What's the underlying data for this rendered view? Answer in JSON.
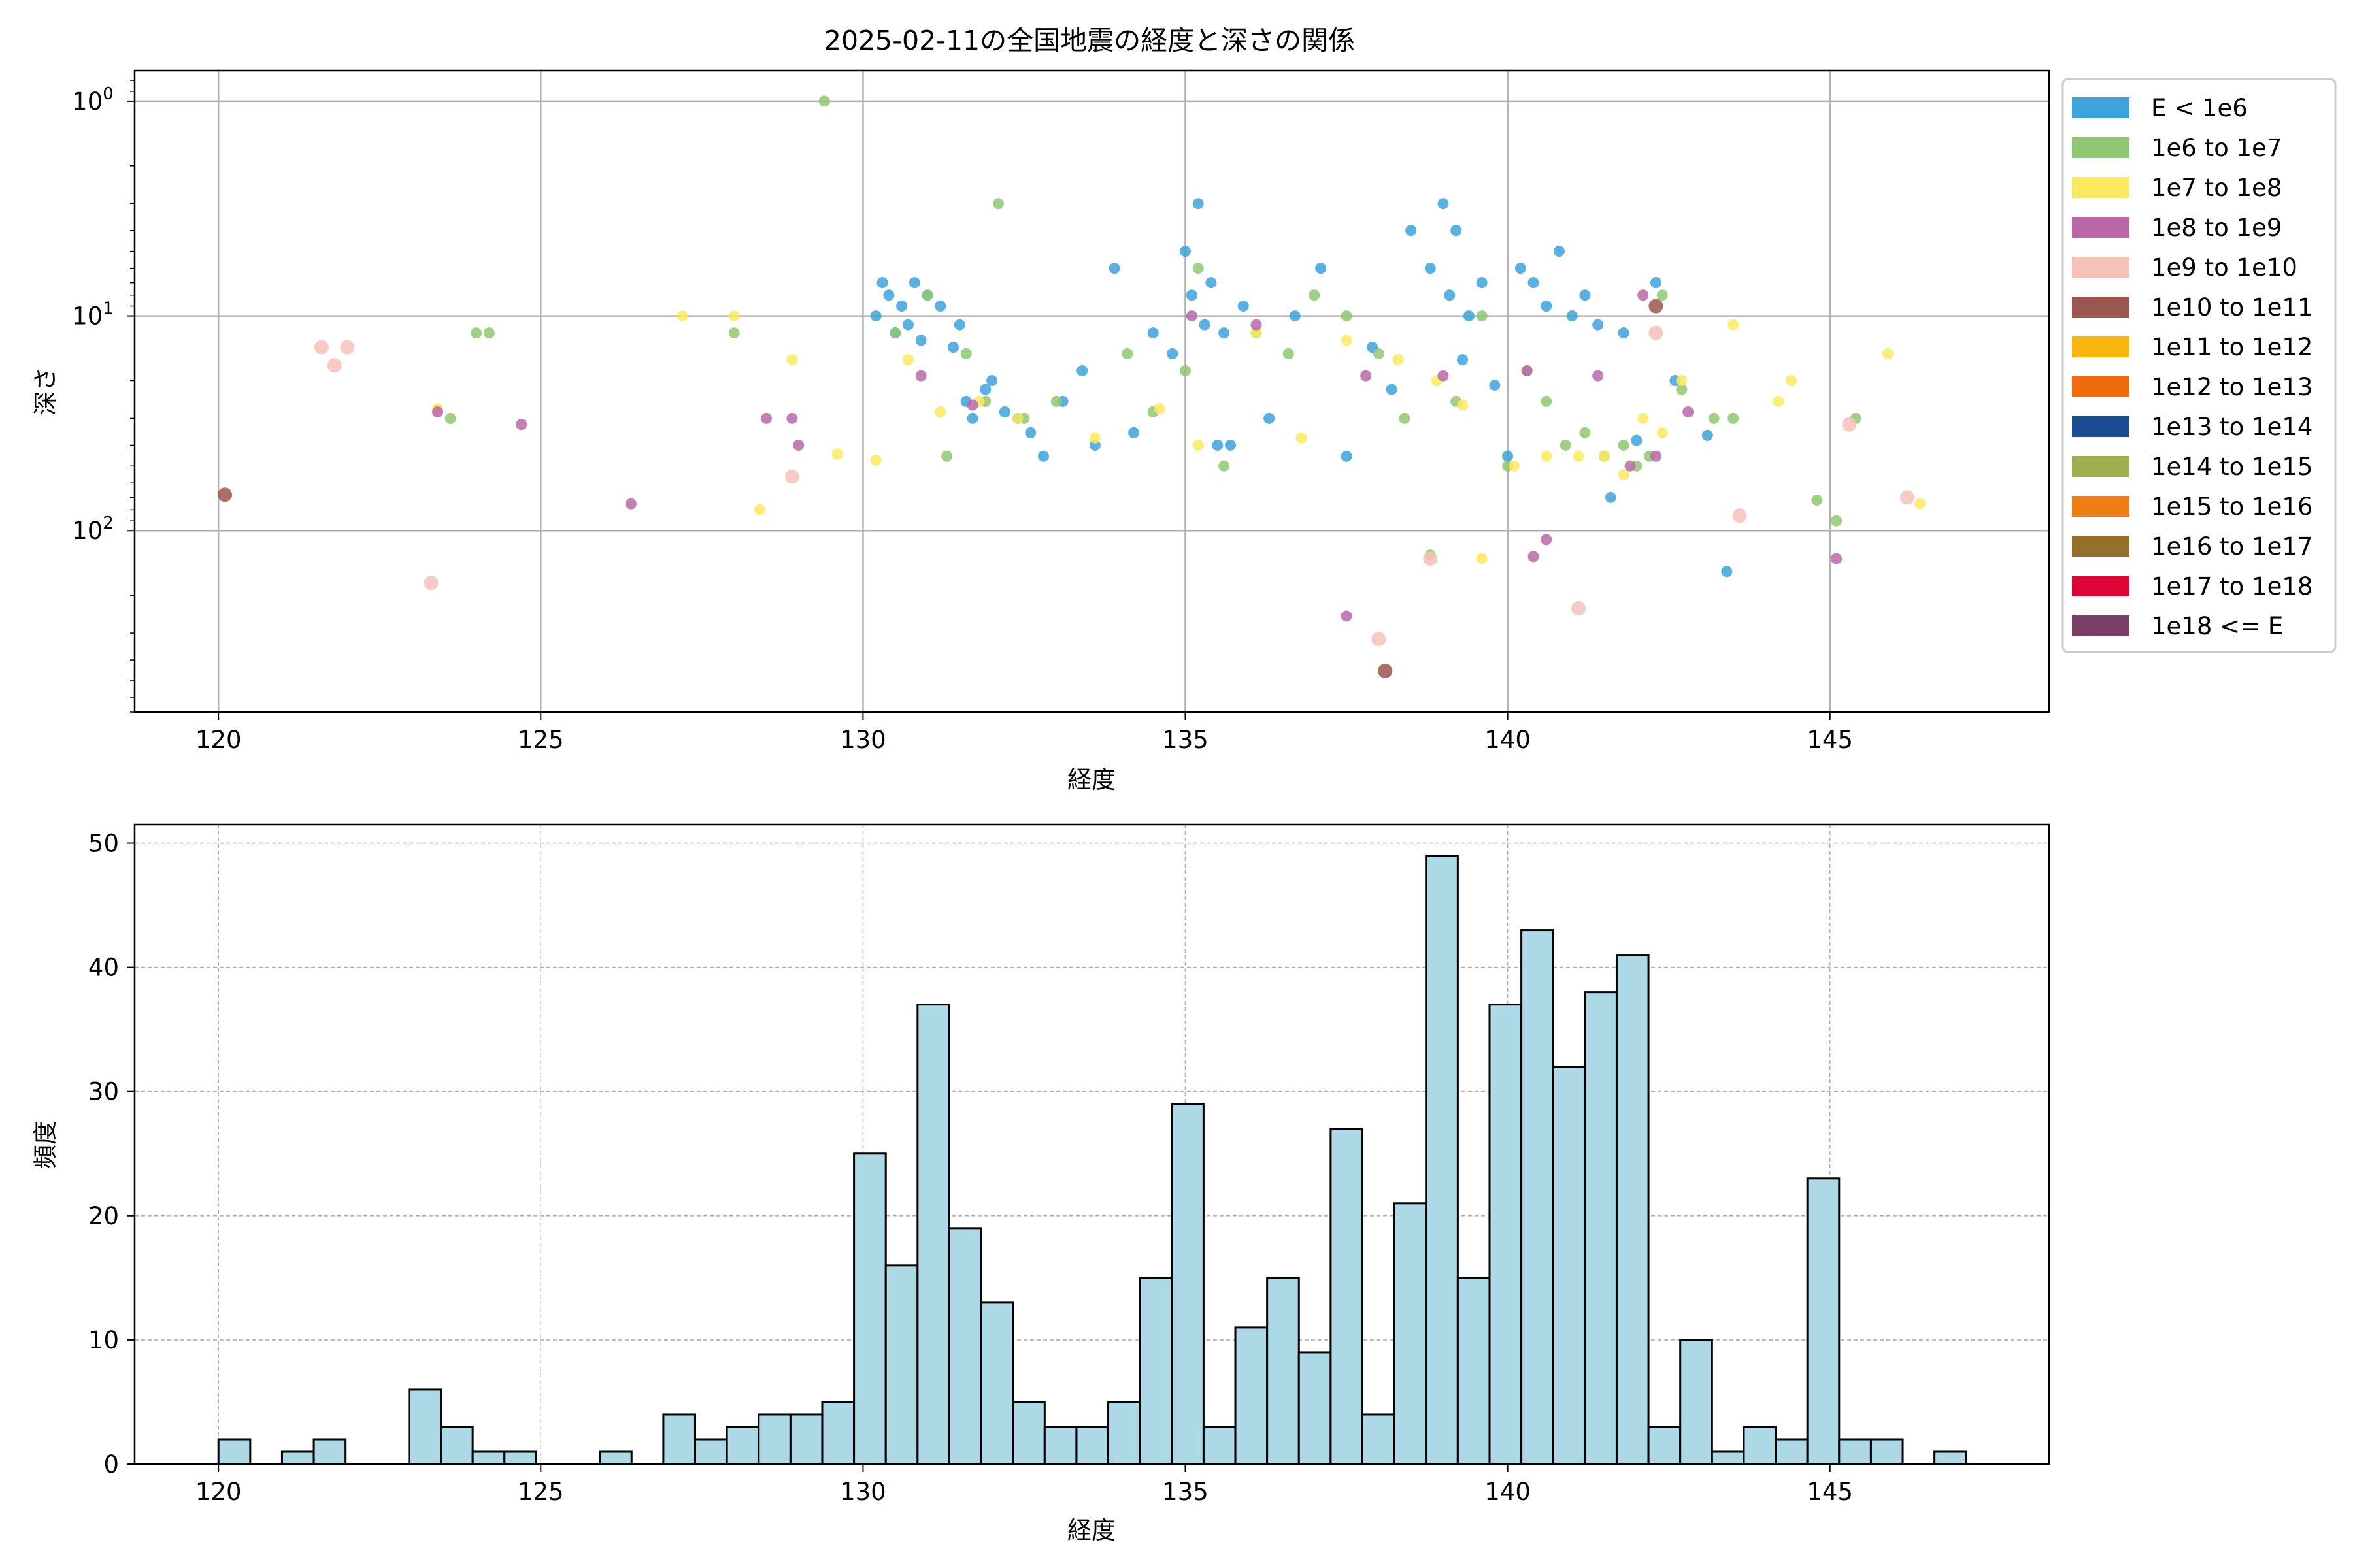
{
  "chart_data": [
    {
      "type": "scatter",
      "title": "2025-02-11の全国地震の経度と深さの関係",
      "xlabel": "経度",
      "ylabel": "深さ",
      "xlim": [
        118.7,
        148.4
      ],
      "ylim": [
        700,
        0.72
      ],
      "y_scale": "log",
      "y_inverted": true,
      "grid": true,
      "x_ticks": [
        {
          "value": 120,
          "label": "120"
        },
        {
          "value": 125,
          "label": "125"
        },
        {
          "value": 130,
          "label": "130"
        },
        {
          "value": 135,
          "label": "135"
        },
        {
          "value": 140,
          "label": "140"
        },
        {
          "value": 145,
          "label": "145"
        }
      ],
      "y_ticks": [
        {
          "value": 1,
          "base": "10",
          "exp": "0"
        },
        {
          "value": 10,
          "base": "10",
          "exp": "1"
        },
        {
          "value": 100,
          "base": "10",
          "exp": "2"
        }
      ],
      "legend": {
        "placement": "outside-right-top",
        "entries": [
          {
            "label": "E < 1e6",
            "color": "#3da3dc"
          },
          {
            "label": "1e6 to 1e7",
            "color": "#8fc872"
          },
          {
            "label": "1e7 to 1e8",
            "color": "#fbe960"
          },
          {
            "label": "1e8 to 1e9",
            "color": "#b867a8"
          },
          {
            "label": "1e9 to 1e10",
            "color": "#f5c2b8"
          },
          {
            "label": "1e10 to 1e11",
            "color": "#99574e"
          },
          {
            "label": "1e11 to 1e12",
            "color": "#f8b50b"
          },
          {
            "label": "1e12 to 1e13",
            "color": "#ef6b0b"
          },
          {
            "label": "1e13 to 1e14",
            "color": "#1d4b93"
          },
          {
            "label": "1e14 to 1e15",
            "color": "#9faf4f"
          },
          {
            "label": "1e15 to 1e16",
            "color": "#ef7f14"
          },
          {
            "label": "1e16 to 1e17",
            "color": "#94702b"
          },
          {
            "label": "1e17 to 1e18",
            "color": "#dc0535"
          },
          {
            "label": "1e18 <= E",
            "color": "#7b406a"
          }
        ]
      },
      "series": [
        {
          "name": "E < 1e6",
          "x": [
            130.2,
            130.3,
            130.4,
            130.5,
            130.6,
            130.7,
            130.8,
            130.9,
            131.0,
            131.2,
            131.4,
            131.5,
            131.6,
            131.7,
            131.9,
            132.0,
            132.2,
            132.4,
            132.6,
            132.8,
            133.1,
            133.4,
            133.6,
            133.9,
            134.2,
            134.5,
            134.8,
            135.0,
            135.1,
            135.2,
            135.3,
            135.4,
            135.5,
            135.6,
            135.7,
            135.9,
            136.3,
            136.7,
            137.1,
            137.5,
            137.9,
            138.2,
            138.5,
            138.8,
            139.0,
            139.1,
            139.2,
            139.3,
            139.4,
            139.6,
            139.8,
            140.0,
            140.2,
            140.4,
            140.6,
            140.8,
            141.0,
            141.2,
            141.4,
            141.6,
            141.8,
            142.0,
            142.3,
            142.6,
            143.1,
            143.4
          ],
          "y": [
            10,
            7,
            8,
            12,
            9,
            11,
            7,
            13,
            8,
            9,
            14,
            11,
            25,
            30,
            22,
            20,
            28,
            30,
            35,
            45,
            25,
            18,
            40,
            6,
            35,
            12,
            15,
            5,
            8,
            3,
            11,
            7,
            40,
            12,
            40,
            9,
            30,
            10,
            6,
            45,
            14,
            22,
            4,
            6,
            3,
            8,
            4,
            16,
            10,
            7,
            21,
            45,
            6,
            7,
            9,
            5,
            10,
            8,
            11,
            70,
            12,
            38,
            7,
            20,
            36,
            155
          ]
        },
        {
          "name": "1e6 to 1e7",
          "x": [
            123.6,
            124.0,
            124.2,
            128.0,
            129.4,
            130.5,
            131.0,
            131.3,
            131.6,
            131.9,
            132.1,
            132.5,
            133.0,
            134.1,
            134.5,
            135.0,
            135.2,
            135.6,
            136.1,
            136.6,
            137.0,
            137.5,
            138.0,
            138.4,
            138.8,
            139.2,
            139.6,
            140.0,
            140.3,
            140.6,
            140.9,
            141.2,
            141.5,
            141.8,
            142.0,
            142.2,
            142.4,
            142.7,
            143.2,
            143.5,
            144.8,
            145.1,
            145.4
          ],
          "y": [
            30,
            12,
            12,
            12,
            1,
            12,
            8,
            45,
            15,
            25,
            3,
            30,
            25,
            15,
            28,
            18,
            6,
            50,
            12,
            15,
            8,
            10,
            15,
            30,
            130,
            25,
            10,
            50,
            18,
            25,
            40,
            35,
            45,
            40,
            50,
            45,
            8,
            22,
            30,
            30,
            72,
            90,
            30
          ]
        },
        {
          "name": "1e7 to 1e8",
          "x": [
            123.4,
            127.2,
            128.0,
            128.4,
            128.9,
            129.6,
            130.2,
            130.7,
            131.2,
            131.8,
            132.4,
            133.6,
            134.6,
            135.2,
            136.1,
            136.8,
            137.5,
            138.3,
            138.9,
            139.3,
            139.6,
            140.1,
            140.6,
            141.1,
            141.5,
            141.8,
            142.1,
            142.4,
            142.7,
            143.5,
            144.2,
            144.4,
            145.9,
            146.4
          ],
          "y": [
            27,
            10,
            10,
            80,
            16,
            44,
            47,
            16,
            28,
            25,
            30,
            37,
            27,
            40,
            12,
            37,
            13,
            16,
            20,
            26,
            135,
            50,
            45,
            45,
            45,
            55,
            30,
            35,
            20,
            11,
            25,
            20,
            15,
            75
          ]
        },
        {
          "name": "1e8 to 1e9",
          "x": [
            123.4,
            124.7,
            126.4,
            128.5,
            128.9,
            129.0,
            130.9,
            131.7,
            135.1,
            136.1,
            137.5,
            137.8,
            139.0,
            140.3,
            140.4,
            140.6,
            141.4,
            141.9,
            142.1,
            142.3,
            142.8,
            145.1
          ],
          "y": [
            28,
            32,
            75,
            30,
            30,
            40,
            19,
            26,
            10,
            11,
            250,
            19,
            19,
            18,
            132,
            110,
            19,
            50,
            8,
            45,
            28,
            135
          ]
        },
        {
          "name": "1e9 to 1e10",
          "x": [
            121.6,
            121.8,
            122.0,
            123.3,
            128.9,
            138.0,
            138.8,
            141.1,
            142.3,
            143.6,
            146.2,
            145.3
          ],
          "y": [
            14,
            17,
            14,
            175,
            56,
            320,
            135,
            230,
            12,
            85,
            70,
            32
          ]
        },
        {
          "name": "1e10 to 1e11",
          "x": [
            120.1,
            138.1,
            142.3
          ],
          "y": [
            68,
            450,
            9
          ]
        }
      ]
    },
    {
      "type": "bar",
      "subtype": "histogram",
      "xlabel": "経度",
      "ylabel": "頻度",
      "xlim": [
        118.7,
        148.4
      ],
      "ylim": [
        0,
        51.5
      ],
      "grid": true,
      "bin_start": 120.0,
      "bin_width": 0.493,
      "values": [
        2,
        0,
        1,
        2,
        0,
        0,
        6,
        3,
        1,
        1,
        0,
        0,
        1,
        0,
        4,
        2,
        3,
        4,
        4,
        5,
        25,
        16,
        37,
        19,
        13,
        5,
        3,
        3,
        5,
        15,
        29,
        3,
        11,
        15,
        9,
        27,
        4,
        21,
        49,
        15,
        37,
        43,
        32,
        38,
        41,
        3,
        10,
        1,
        3,
        2,
        23,
        2,
        2,
        0,
        1
      ],
      "bar_color": "#add8e6",
      "edge_color": "#000000",
      "x_ticks": [
        "120",
        "125",
        "130",
        "135",
        "140",
        "145"
      ],
      "y_ticks": [
        "0",
        "10",
        "20",
        "30",
        "40",
        "50"
      ]
    }
  ]
}
